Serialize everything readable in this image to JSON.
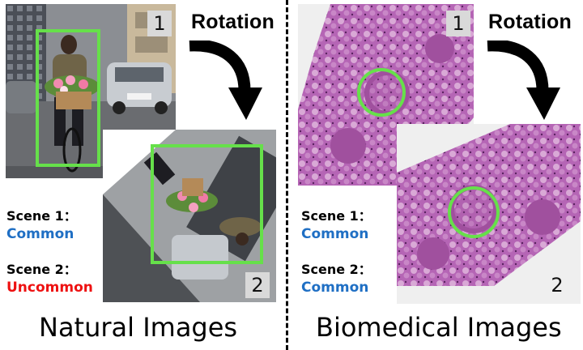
{
  "left_panel": {
    "rotation_label": "Rotation",
    "image1_number": "1",
    "image2_number": "2",
    "scene1_label": "Scene 1：",
    "scene1_value": "Common",
    "scene2_label": "Scene 2：",
    "scene2_value": "Uncommon",
    "caption": "Natural Images"
  },
  "right_panel": {
    "rotation_label": "Rotation",
    "image1_number": "1",
    "image2_number": "2",
    "scene1_label": "Scene 1：",
    "scene1_value": "Common",
    "scene2_label": "Scene 2：",
    "scene2_value": "Common",
    "caption": "Biomedical Images"
  },
  "colors": {
    "common": "#1f6fc4",
    "uncommon": "#ee1111",
    "detection_box": "#66e04a",
    "tissue": "#b565b5"
  }
}
